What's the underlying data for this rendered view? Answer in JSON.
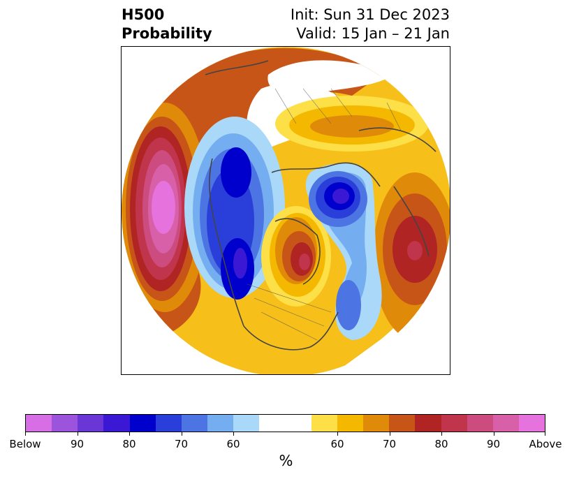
{
  "title": {
    "left_line1": "H500",
    "left_line2": "Probability",
    "right_line1": "Init: Sun 31 Dec 2023",
    "right_line2": "Valid: 15 Jan – 21 Jan"
  },
  "colorbar": {
    "unit": "%",
    "colors": [
      "#d86ee6",
      "#9c54dc",
      "#6a36d6",
      "#3b18d4",
      "#0000cc",
      "#2a3fd9",
      "#4c74e2",
      "#74aef0",
      "#aad8f8",
      "#ffffff",
      "#ffffff",
      "#fde047",
      "#f5b800",
      "#e08a0a",
      "#c85518",
      "#b02424",
      "#c0344c",
      "#cc4c80",
      "#d860a8",
      "#e673dd"
    ],
    "tick_labels": [
      "Below",
      "90",
      "80",
      "70",
      "60",
      "60",
      "70",
      "80",
      "90",
      "Above"
    ]
  },
  "colors": {
    "below_strong": "#0000cc",
    "above_strong": "#b02424",
    "coastline": "#444444"
  }
}
